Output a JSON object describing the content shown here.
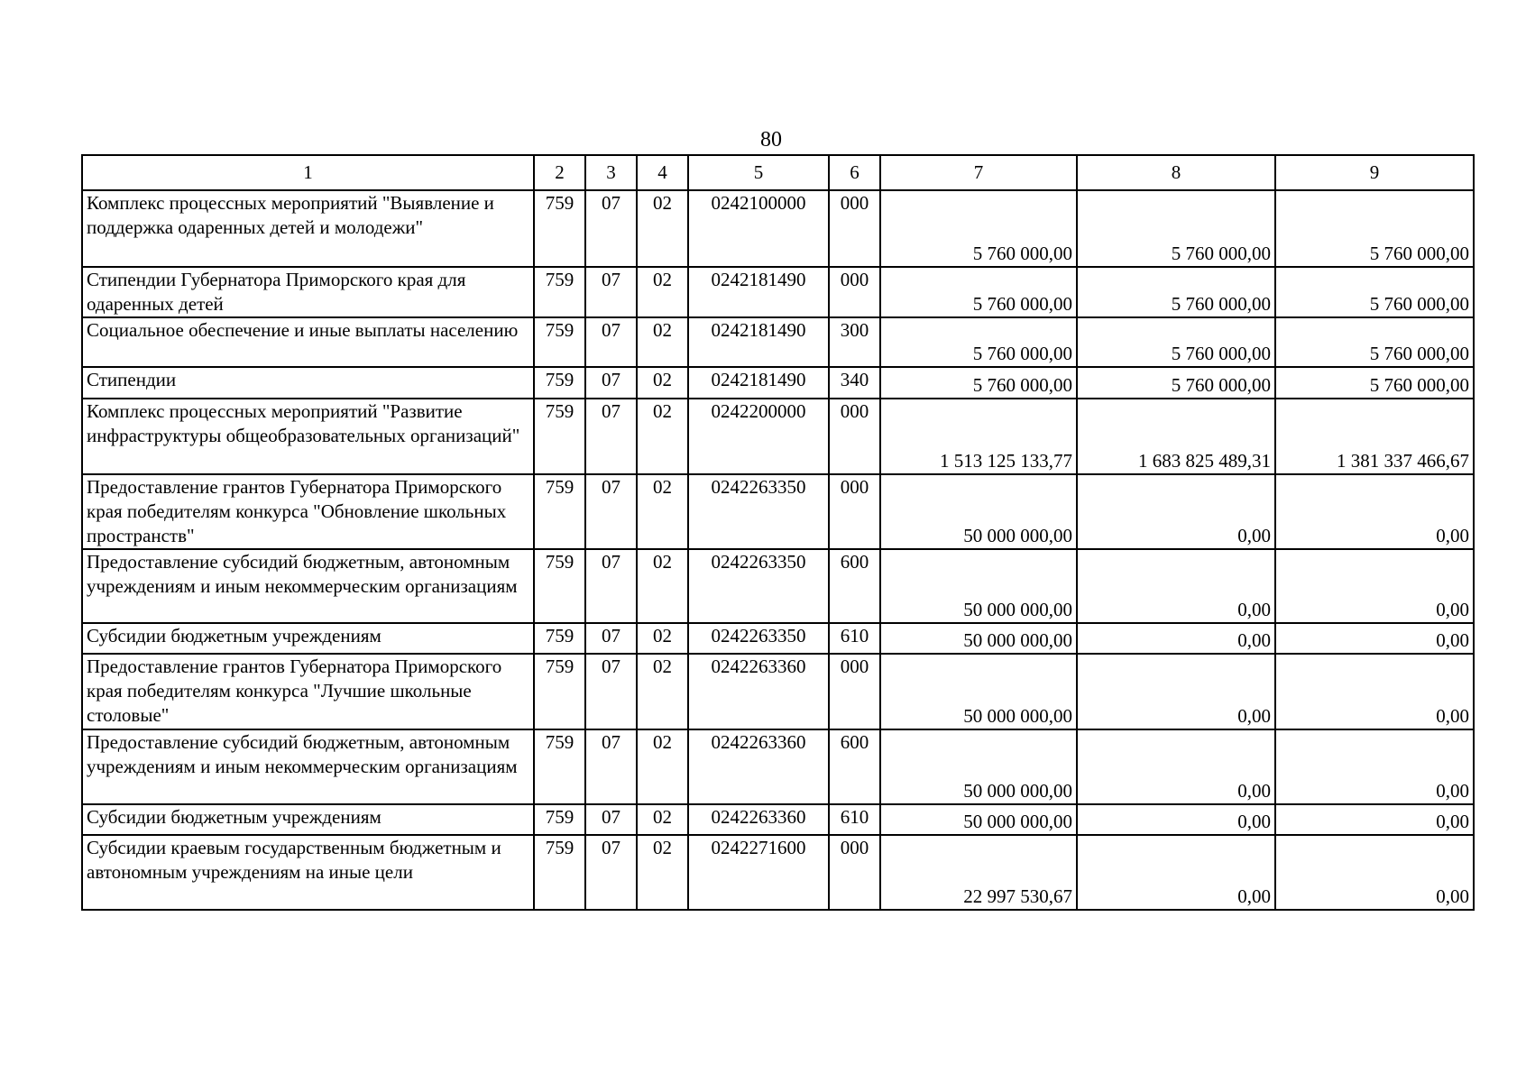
{
  "page_number": "80",
  "headers": [
    "1",
    "2",
    "3",
    "4",
    "5",
    "6",
    "7",
    "8",
    "9"
  ],
  "rows": [
    {
      "name": "Комплекс процессных мероприятий \"Выявление и поддержка одаренных детей и молодежи\"",
      "c2": "759",
      "c3": "07",
      "c4": "02",
      "c5": "0242100000",
      "c6": "000",
      "c7": "5 760 000,00",
      "c8": "5 760 000,00",
      "c9": "5 760 000,00"
    },
    {
      "name": "Стипендии Губернатора Приморского края для одаренных детей",
      "c2": "759",
      "c3": "07",
      "c4": "02",
      "c5": "0242181490",
      "c6": "000",
      "c7": "5 760 000,00",
      "c8": "5 760 000,00",
      "c9": "5 760 000,00"
    },
    {
      "name": "Социальное обеспечение и иные выплаты населению",
      "c2": "759",
      "c3": "07",
      "c4": "02",
      "c5": "0242181490",
      "c6": "300",
      "c7": "5 760 000,00",
      "c8": "5 760 000,00",
      "c9": "5 760 000,00"
    },
    {
      "name": "Стипендии",
      "c2": "759",
      "c3": "07",
      "c4": "02",
      "c5": "0242181490",
      "c6": "340",
      "c7": "5 760 000,00",
      "c8": "5 760 000,00",
      "c9": "5 760 000,00"
    },
    {
      "name": "Комплекс процессных мероприятий \"Развитие инфраструктуры общеобразовательных организаций\"",
      "c2": "759",
      "c3": "07",
      "c4": "02",
      "c5": "0242200000",
      "c6": "000",
      "c7": "1 513 125 133,77",
      "c8": "1 683 825 489,31",
      "c9": "1 381 337 466,67"
    },
    {
      "name": "Предоставление грантов Губернатора Приморского края победителям конкурса \"Обновление школьных пространств\"",
      "c2": "759",
      "c3": "07",
      "c4": "02",
      "c5": "0242263350",
      "c6": "000",
      "c7": "50 000 000,00",
      "c8": "0,00",
      "c9": "0,00"
    },
    {
      "name": "Предоставление субсидий бюджетным, автономным учреждениям и иным некоммерческим организациям",
      "c2": "759",
      "c3": "07",
      "c4": "02",
      "c5": "0242263350",
      "c6": "600",
      "c7": "50 000 000,00",
      "c8": "0,00",
      "c9": "0,00"
    },
    {
      "name": "Субсидии бюджетным учреждениям",
      "c2": "759",
      "c3": "07",
      "c4": "02",
      "c5": "0242263350",
      "c6": "610",
      "c7": "50 000 000,00",
      "c8": "0,00",
      "c9": "0,00"
    },
    {
      "name": "Предоставление грантов Губернатора Приморского края победителям конкурса \"Лучшие школьные столовые\"",
      "c2": "759",
      "c3": "07",
      "c4": "02",
      "c5": "0242263360",
      "c6": "000",
      "c7": "50 000 000,00",
      "c8": "0,00",
      "c9": "0,00"
    },
    {
      "name": "Предоставление субсидий бюджетным, автономным учреждениям и иным некоммерческим организациям",
      "c2": "759",
      "c3": "07",
      "c4": "02",
      "c5": "0242263360",
      "c6": "600",
      "c7": "50 000 000,00",
      "c8": "0,00",
      "c9": "0,00"
    },
    {
      "name": "Субсидии бюджетным учреждениям",
      "c2": "759",
      "c3": "07",
      "c4": "02",
      "c5": "0242263360",
      "c6": "610",
      "c7": "50 000 000,00",
      "c8": "0,00",
      "c9": "0,00"
    },
    {
      "name": "Субсидии краевым государственным бюджетным и автономным учреждениям на иные цели",
      "c2": "759",
      "c3": "07",
      "c4": "02",
      "c5": "0242271600",
      "c6": "000",
      "c7": "22 997 530,67",
      "c8": "0,00",
      "c9": "0,00"
    }
  ]
}
